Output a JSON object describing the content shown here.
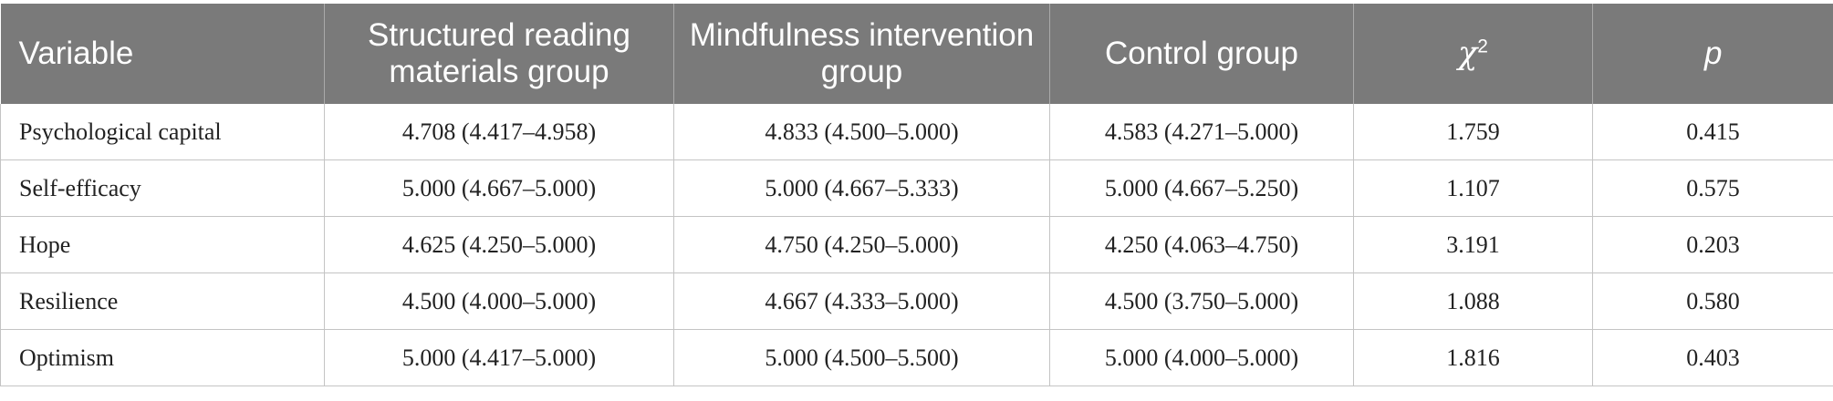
{
  "table": {
    "headers": {
      "variable": "Variable",
      "structured": "Structured reading materials group",
      "mindfulness": "Mindfulness intervention group",
      "control": "Control group",
      "chi": "χ",
      "chi_sup": "2",
      "p": "p"
    },
    "rows": [
      {
        "variable": "Psychological capital",
        "structured": "4.708 (4.417–4.958)",
        "mindfulness": "4.833 (4.500–5.000)",
        "control": "4.583 (4.271–5.000)",
        "chi2": "1.759",
        "p": "0.415"
      },
      {
        "variable": "Self-efficacy",
        "structured": "5.000 (4.667–5.000)",
        "mindfulness": "5.000 (4.667–5.333)",
        "control": "5.000 (4.667–5.250)",
        "chi2": "1.107",
        "p": "0.575"
      },
      {
        "variable": "Hope",
        "structured": "4.625 (4.250–5.000)",
        "mindfulness": "4.750 (4.250–5.000)",
        "control": "4.250 (4.063–4.750)",
        "chi2": "3.191",
        "p": "0.203"
      },
      {
        "variable": "Resilience",
        "structured": "4.500 (4.000–5.000)",
        "mindfulness": "4.667 (4.333–5.000)",
        "control": "4.500 (3.750–5.000)",
        "chi2": "1.088",
        "p": "0.580"
      },
      {
        "variable": "Optimism",
        "structured": "5.000 (4.417–5.000)",
        "mindfulness": "5.000 (4.500–5.500)",
        "control": "5.000 (4.000–5.000)",
        "chi2": "1.816",
        "p": "0.403"
      }
    ]
  }
}
